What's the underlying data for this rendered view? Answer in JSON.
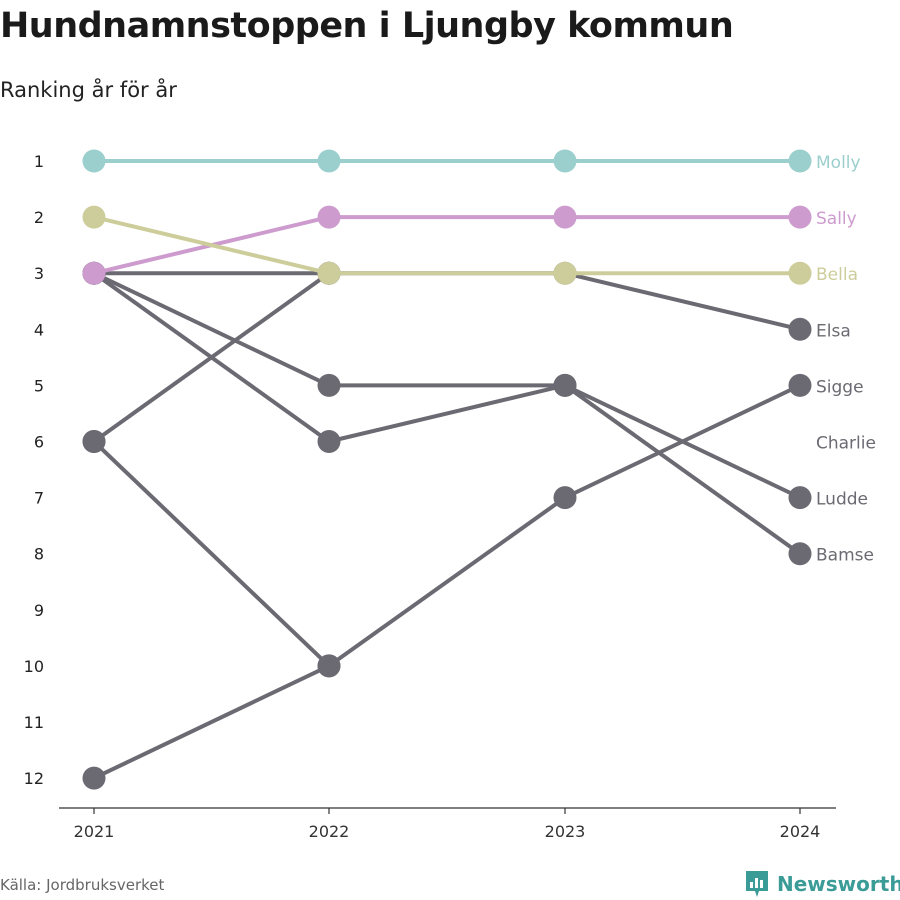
{
  "title": "Hundnamnstoppen i Ljungby kommun",
  "subtitle": "Ranking år för år",
  "source": "Källa: Jordbruksverket",
  "brand": {
    "name": "Newsworthy",
    "color": "#3a9b97"
  },
  "chart_data": {
    "type": "line",
    "x": [
      "2021",
      "2022",
      "2023",
      "2024"
    ],
    "ytick_labels": [
      "1",
      "2",
      "3",
      "4",
      "5",
      "6",
      "7",
      "8",
      "9",
      "10",
      "11",
      "12"
    ],
    "ylim": [
      1,
      12
    ],
    "y_reversed": true,
    "grid": false,
    "legend": "inline labels at right end",
    "series": [
      {
        "name": "Molly",
        "values": [
          1,
          1,
          1,
          1
        ],
        "color": "#9bcfcd"
      },
      {
        "name": "Sally",
        "values": [
          3,
          2,
          2,
          2
        ],
        "color": "#cd9bcd"
      },
      {
        "name": "Bella",
        "values": [
          2,
          3,
          3,
          3
        ],
        "color": "#cdcd9b"
      },
      {
        "name": "Elsa",
        "values": [
          3,
          3,
          3,
          4
        ],
        "color": "#6b6a72"
      },
      {
        "name": "Sigge",
        "values": [
          12,
          10,
          7,
          5
        ],
        "color": "#6b6a72"
      },
      {
        "name": "Charlie",
        "values": [
          6,
          3,
          null,
          null
        ],
        "color": "#6b6a72"
      },
      {
        "name": "Ludde",
        "values": [
          3,
          5,
          5,
          7
        ],
        "color": "#6b6a72"
      },
      {
        "name": "Bamse",
        "values": [
          6,
          10,
          null,
          null
        ],
        "color": "#6b6a72"
      },
      {
        "name": "",
        "values": [
          3,
          6,
          5,
          8
        ],
        "color": "#6b6a72"
      }
    ]
  }
}
